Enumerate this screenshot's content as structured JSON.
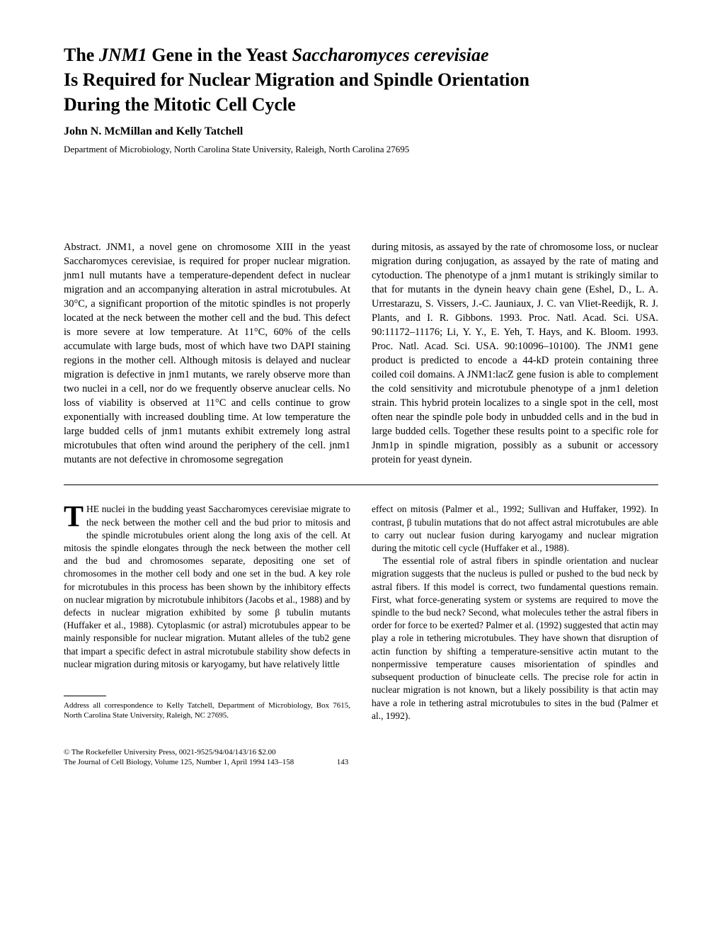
{
  "title": {
    "line1_pre": "The ",
    "line1_italic1": "JNM1",
    "line1_mid": " Gene in the Yeast ",
    "line1_italic2": "Saccharomyces cerevisiae",
    "line2": "Is Required for Nuclear Migration and Spindle Orientation",
    "line3": "During the Mitotic Cell Cycle"
  },
  "authors": "John N. McMillan and Kelly Tatchell",
  "affiliation": "Department of Microbiology, North Carolina State University, Raleigh, North Carolina 27695",
  "abstract": {
    "left": "Abstract. JNM1, a novel gene on chromosome XIII in the yeast Saccharomyces cerevisiae, is required for proper nuclear migration. jnm1 null mutants have a temperature-dependent defect in nuclear migration and an accompanying alteration in astral microtubules. At 30°C, a significant proportion of the mitotic spindles is not properly located at the neck between the mother cell and the bud. This defect is more severe at low temperature. At 11°C, 60% of the cells accumulate with large buds, most of which have two DAPI staining regions in the mother cell. Although mitosis is delayed and nuclear migration is defective in jnm1 mutants, we rarely observe more than two nuclei in a cell, nor do we frequently observe anuclear cells. No loss of viability is observed at 11°C and cells continue to grow exponentially with increased doubling time. At low temperature the large budded cells of jnm1 mutants exhibit extremely long astral microtubules that often wind around the periphery of the cell. jnm1 mutants are not defective in chromosome segregation",
    "right": "during mitosis, as assayed by the rate of chromosome loss, or nuclear migration during conjugation, as assayed by the rate of mating and cytoduction. The phenotype of a jnm1 mutant is strikingly similar to that for mutants in the dynein heavy chain gene (Eshel, D., L. A. Urrestarazu, S. Vissers, J.-C. Jauniaux, J. C. van Vliet-Reedijk, R. J. Plants, and I. R. Gibbons. 1993. Proc. Natl. Acad. Sci. USA. 90:11172–11176; Li, Y. Y., E. Yeh, T. Hays, and K. Bloom. 1993. Proc. Natl. Acad. Sci. USA. 90:10096–10100). The JNM1 gene product is predicted to encode a 44-kD protein containing three coiled coil domains. A JNM1:lacZ gene fusion is able to complement the cold sensitivity and microtubule phenotype of a jnm1 deletion strain. This hybrid protein localizes to a single spot in the cell, most often near the spindle pole body in unbudded cells and in the bud in large budded cells. Together these results point to a specific role for Jnm1p in spindle migration, possibly as a subunit or accessory protein for yeast dynein."
  },
  "body": {
    "left_first_char": "T",
    "left_p1": "HE nuclei in the budding yeast Saccharomyces cerevisiae migrate to the neck between the mother cell and the bud prior to mitosis and the spindle microtubules orient along the long axis of the cell. At mitosis the spindle elongates through the neck between the mother cell and the bud and chromosomes separate, depositing one set of chromosomes in the mother cell body and one set in the bud. A key role for microtubules in this process has been shown by the inhibitory effects on nuclear migration by microtubule inhibitors (Jacobs et al., 1988) and by defects in nuclear migration exhibited by some β tubulin mutants (Huffaker et al., 1988). Cytoplasmic (or astral) microtubules appear to be mainly responsible for nuclear migration. Mutant alleles of the tub2 gene that impart a specific defect in astral microtubule stability show defects in nuclear migration during mitosis or karyogamy, but have relatively little",
    "right_p1": "effect on mitosis (Palmer et al., 1992; Sullivan and Huffaker, 1992). In contrast, β tubulin mutations that do not affect astral microtubules are able to carry out nuclear fusion during karyogamy and nuclear migration during the mitotic cell cycle (Huffaker et al., 1988).",
    "right_p2": "The essential role of astral fibers in spindle orientation and nuclear migration suggests that the nucleus is pulled or pushed to the bud neck by astral fibers. If this model is correct, two fundamental questions remain. First, what force-generating system or systems are required to move the spindle to the bud neck? Second, what molecules tether the astral fibers in order for force to be exerted? Palmer et al. (1992) suggested that actin may play a role in tethering microtubules. They have shown that disruption of actin function by shifting a temperature-sensitive actin mutant to the nonpermissive temperature causes misorientation of spindles and subsequent production of binucleate cells. The precise role for actin in nuclear migration is not known, but a likely possibility is that actin may have a role in tethering astral microtubules to sites in the bud (Palmer et al., 1992)."
  },
  "footnote": "Address all correspondence to Kelly Tatchell, Department of Microbiology, Box 7615, North Carolina State University, Raleigh, NC 27695.",
  "copyright_line1": "© The Rockefeller University Press, 0021-9525/94/04/143/16 $2.00",
  "copyright_line2": "The Journal of Cell Biology, Volume 125, Number 1, April 1994 143–158",
  "page_number": "143"
}
